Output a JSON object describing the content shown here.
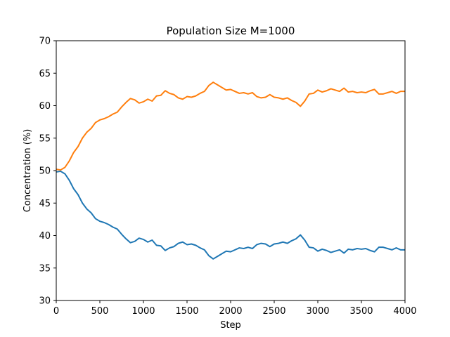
{
  "chart_data": {
    "type": "line",
    "title": "Population Size M=1000",
    "xlabel": "Step",
    "ylabel": "Concentration (%)",
    "xlim": [
      0,
      4000
    ],
    "ylim": [
      30,
      70
    ],
    "xticks": [
      0,
      500,
      1000,
      1500,
      2000,
      2500,
      3000,
      3500,
      4000
    ],
    "yticks": [
      30,
      35,
      40,
      45,
      50,
      55,
      60,
      65,
      70
    ],
    "grid": false,
    "series": [
      {
        "color": "#1f77b4",
        "x": [
          0,
          50,
          100,
          150,
          200,
          250,
          300,
          350,
          400,
          450,
          500,
          550,
          600,
          650,
          700,
          750,
          800,
          850,
          900,
          950,
          1000,
          1050,
          1100,
          1150,
          1200,
          1250,
          1300,
          1350,
          1400,
          1450,
          1500,
          1550,
          1600,
          1650,
          1700,
          1750,
          1800,
          1850,
          1900,
          1950,
          2000,
          2050,
          2100,
          2150,
          2200,
          2250,
          2300,
          2350,
          2400,
          2450,
          2500,
          2550,
          2600,
          2650,
          2700,
          2750,
          2800,
          2850,
          2900,
          2950,
          3000,
          3050,
          3100,
          3150,
          3200,
          3250,
          3300,
          3350,
          3400,
          3450,
          3500,
          3550,
          3600,
          3650,
          3700,
          3750,
          3800,
          3850,
          3900,
          3950,
          4000
        ],
        "y": [
          49.8,
          49.9,
          49.5,
          48.5,
          47.2,
          46.3,
          45.0,
          44.1,
          43.5,
          42.6,
          42.2,
          42.0,
          41.7,
          41.3,
          41.0,
          40.2,
          39.5,
          38.9,
          39.1,
          39.6,
          39.4,
          39.0,
          39.3,
          38.5,
          38.4,
          37.7,
          38.1,
          38.3,
          38.8,
          39.0,
          38.6,
          38.7,
          38.5,
          38.1,
          37.8,
          36.9,
          36.4,
          36.8,
          37.2,
          37.6,
          37.5,
          37.8,
          38.1,
          38.0,
          38.2,
          38.0,
          38.6,
          38.8,
          38.7,
          38.3,
          38.7,
          38.8,
          39.0,
          38.8,
          39.2,
          39.5,
          40.1,
          39.3,
          38.2,
          38.1,
          37.6,
          37.9,
          37.7,
          37.4,
          37.6,
          37.8,
          37.3,
          37.9,
          37.8,
          38.0,
          37.9,
          38.0,
          37.7,
          37.5,
          38.2,
          38.2,
          38.0,
          37.8,
          38.1,
          37.8,
          37.8
        ]
      },
      {
        "color": "#ff7f0e",
        "x": [
          0,
          50,
          100,
          150,
          200,
          250,
          300,
          350,
          400,
          450,
          500,
          550,
          600,
          650,
          700,
          750,
          800,
          850,
          900,
          950,
          1000,
          1050,
          1100,
          1150,
          1200,
          1250,
          1300,
          1350,
          1400,
          1450,
          1500,
          1550,
          1600,
          1650,
          1700,
          1750,
          1800,
          1850,
          1900,
          1950,
          2000,
          2050,
          2100,
          2150,
          2200,
          2250,
          2300,
          2350,
          2400,
          2450,
          2500,
          2550,
          2600,
          2650,
          2700,
          2750,
          2800,
          2850,
          2900,
          2950,
          3000,
          3050,
          3100,
          3150,
          3200,
          3250,
          3300,
          3350,
          3400,
          3450,
          3500,
          3550,
          3600,
          3650,
          3700,
          3750,
          3800,
          3850,
          3900,
          3950,
          4000
        ],
        "y": [
          50.2,
          50.1,
          50.5,
          51.5,
          52.8,
          53.7,
          55.0,
          55.9,
          56.5,
          57.4,
          57.8,
          58.0,
          58.3,
          58.7,
          59.0,
          59.8,
          60.5,
          61.1,
          60.9,
          60.4,
          60.6,
          61.0,
          60.7,
          61.5,
          61.6,
          62.3,
          61.9,
          61.7,
          61.2,
          61.0,
          61.4,
          61.3,
          61.5,
          61.9,
          62.2,
          63.1,
          63.6,
          63.2,
          62.8,
          62.4,
          62.5,
          62.2,
          61.9,
          62.0,
          61.8,
          62.0,
          61.4,
          61.2,
          61.3,
          61.7,
          61.3,
          61.2,
          61.0,
          61.2,
          60.8,
          60.5,
          59.9,
          60.7,
          61.8,
          61.9,
          62.4,
          62.1,
          62.3,
          62.6,
          62.4,
          62.2,
          62.7,
          62.1,
          62.2,
          62.0,
          62.1,
          62.0,
          62.3,
          62.5,
          61.8,
          61.8,
          62.0,
          62.2,
          61.9,
          62.2,
          62.2
        ]
      }
    ]
  }
}
